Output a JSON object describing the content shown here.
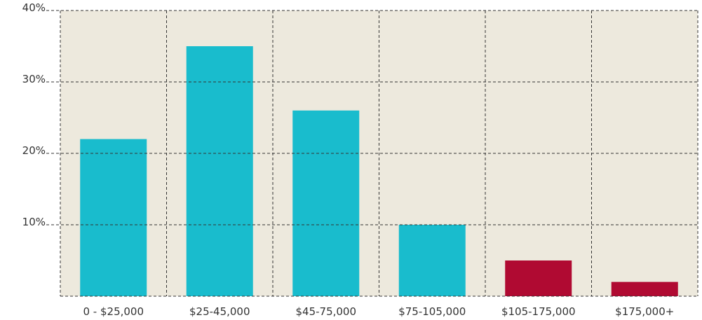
{
  "chart_data": {
    "type": "bar",
    "categories": [
      "0 - $25,000",
      "$25-45,000",
      "$45-75,000",
      "$75-105,000",
      "$105-175,000",
      "$175,000+"
    ],
    "values": [
      22,
      35,
      26,
      10,
      5,
      2
    ],
    "colors": [
      "#19bccd",
      "#19bccd",
      "#19bccd",
      "#19bccd",
      "#b00a32",
      "#b00a32"
    ],
    "ylim": [
      0,
      40
    ],
    "yticks": [
      {
        "value": 10,
        "label": "10%"
      },
      {
        "value": 20,
        "label": "20%"
      },
      {
        "value": 30,
        "label": "30%"
      },
      {
        "value": 40,
        "label": "40%"
      }
    ],
    "grid": true
  }
}
